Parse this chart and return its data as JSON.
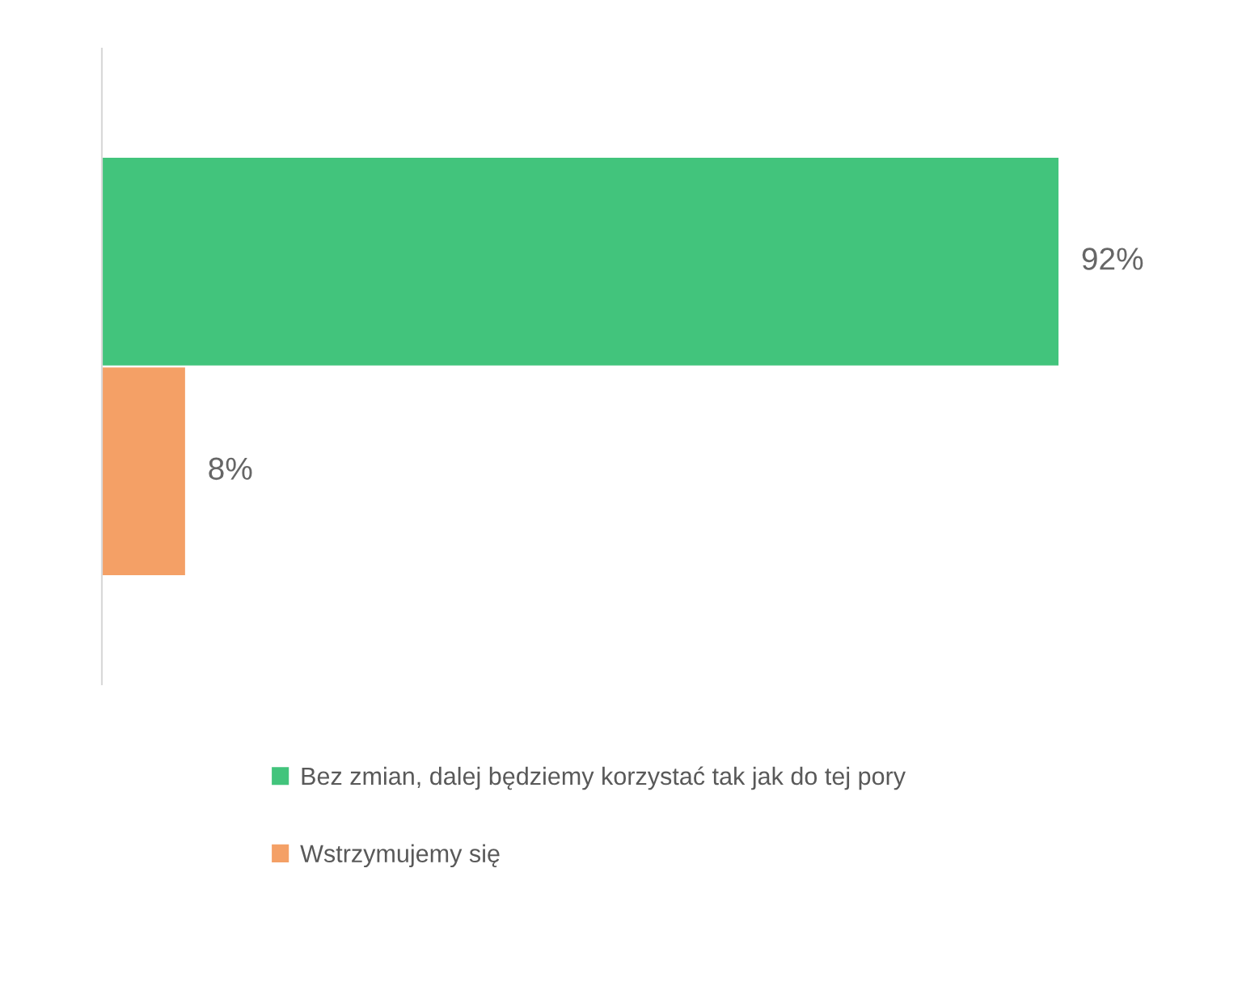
{
  "chart_data": {
    "type": "bar",
    "orientation": "horizontal",
    "categories": [
      null
    ],
    "series": [
      {
        "name": "Bez zmian, dalej będziemy korzystać tak jak do tej pory",
        "color": "#42c47c",
        "values": [
          92
        ],
        "value_labels": [
          "92%"
        ]
      },
      {
        "name": "Wstrzymujemy się",
        "color": "#f4a066",
        "values": [
          8
        ],
        "value_labels": [
          "8%"
        ]
      }
    ],
    "tick_labels": false,
    "grid": false,
    "legend": "bottom"
  }
}
